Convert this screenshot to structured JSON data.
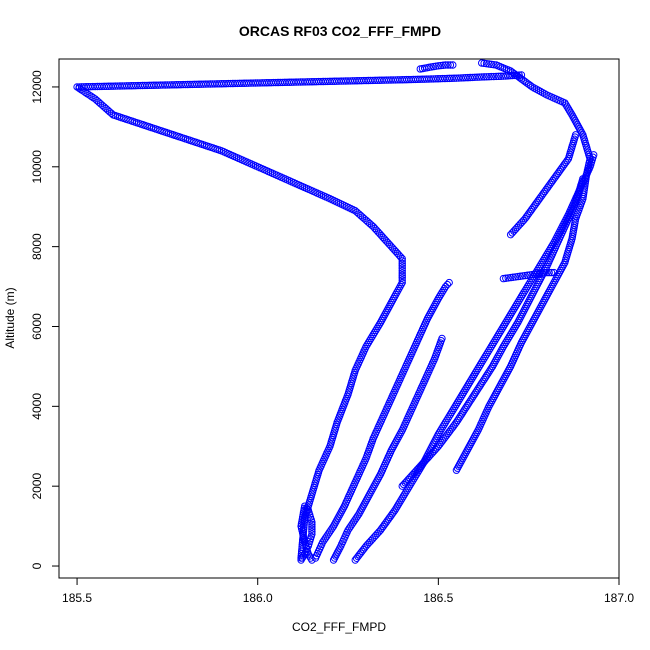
{
  "chart_data": {
    "type": "scatter",
    "title": "ORCAS RF03 CO2_FFF_FMPD",
    "xlabel": "CO2_FFF_FMPD",
    "ylabel": "Altitude (m)",
    "xlim": [
      185.45,
      187.0
    ],
    "ylim": [
      -300,
      12700
    ],
    "x_ticks": [
      185.5,
      186.0,
      186.5,
      187.0
    ],
    "x_tick_labels": [
      "185.5",
      "186.0",
      "186.5",
      "187.0"
    ],
    "y_ticks": [
      0,
      2000,
      4000,
      6000,
      8000,
      10000,
      12000
    ],
    "y_tick_labels": [
      "0",
      "2000",
      "4000",
      "6000",
      "8000",
      "10000",
      "12000"
    ],
    "grid": false,
    "marker": "open-circle",
    "series_color": "#0000ff",
    "series": [
      {
        "x": [
          186.62,
          186.66,
          186.7,
          186.73,
          186.76,
          186.8,
          186.85,
          186.87,
          186.9,
          186.92,
          186.91,
          186.9,
          186.88,
          186.87,
          186.85,
          186.82,
          186.79,
          186.76,
          186.73,
          186.7,
          186.67,
          186.64,
          186.61,
          186.58,
          186.55
        ],
        "y": [
          12600,
          12550,
          12400,
          12200,
          12000,
          11800,
          11600,
          11300,
          10800,
          10200,
          9800,
          9200,
          8700,
          8200,
          7600,
          7100,
          6600,
          6100,
          5600,
          5000,
          4500,
          4000,
          3400,
          2900,
          2400
        ]
      },
      {
        "x": [
          186.73,
          186.68,
          186.62,
          186.55,
          186.48,
          186.4,
          186.3,
          186.2,
          186.1,
          186.0,
          185.9,
          185.8,
          185.7,
          185.6,
          185.5,
          185.55,
          185.6,
          185.7,
          185.8,
          185.9,
          186.0,
          186.1,
          186.2,
          186.27,
          186.32,
          186.36,
          186.4,
          186.4,
          186.37,
          186.34,
          186.3,
          186.27,
          186.25,
          186.22,
          186.2,
          186.17,
          186.15,
          186.13,
          186.12
        ],
        "y": [
          12300,
          12270,
          12250,
          12220,
          12200,
          12180,
          12160,
          12140,
          12120,
          12100,
          12080,
          12060,
          12040,
          12020,
          12000,
          11700,
          11300,
          11000,
          10700,
          10400,
          10000,
          9600,
          9200,
          8900,
          8500,
          8100,
          7700,
          7100,
          6600,
          6100,
          5500,
          4900,
          4300,
          3600,
          3000,
          2400,
          1800,
          1200,
          200
        ]
      },
      {
        "x": [
          186.12,
          186.13,
          186.14,
          186.15,
          186.15,
          186.14,
          186.13,
          186.12,
          186.13,
          186.14,
          186.15
        ],
        "y": [
          150,
          300,
          500,
          800,
          1100,
          1400,
          1500,
          1000,
          600,
          300,
          150
        ]
      },
      {
        "x": [
          186.16,
          186.18,
          186.21,
          186.24,
          186.27,
          186.3,
          186.32,
          186.35,
          186.38,
          186.41,
          186.44,
          186.47,
          186.5,
          186.52,
          186.53
        ],
        "y": [
          200,
          600,
          1000,
          1500,
          2100,
          2700,
          3200,
          3800,
          4400,
          5000,
          5600,
          6200,
          6700,
          7000,
          7100
        ]
      },
      {
        "x": [
          186.21,
          186.23,
          186.25,
          186.28,
          186.31,
          186.34,
          186.37,
          186.4,
          186.43,
          186.46,
          186.49,
          186.51
        ],
        "y": [
          150,
          500,
          900,
          1300,
          1800,
          2300,
          2900,
          3400,
          4000,
          4600,
          5200,
          5700
        ]
      },
      {
        "x": [
          186.27,
          186.3,
          186.34,
          186.38,
          186.42,
          186.46,
          186.5,
          186.54,
          186.58,
          186.62,
          186.66,
          186.7,
          186.74,
          186.78,
          186.82,
          186.86,
          186.89,
          186.92,
          186.93
        ],
        "y": [
          150,
          500,
          900,
          1400,
          2000,
          2600,
          3300,
          3900,
          4500,
          5100,
          5700,
          6300,
          6900,
          7500,
          8100,
          8800,
          9400,
          10000,
          10300
        ]
      },
      {
        "x": [
          186.4,
          186.45,
          186.5,
          186.55,
          186.6,
          186.65,
          186.68,
          186.72,
          186.76,
          186.8,
          186.84,
          186.88,
          186.9
        ],
        "y": [
          2000,
          2500,
          3000,
          3600,
          4300,
          5000,
          5500,
          6100,
          6800,
          7500,
          8300,
          9100,
          9700
        ]
      },
      {
        "x": [
          186.68,
          186.72,
          186.76,
          186.8,
          186.82
        ],
        "y": [
          7200,
          7250,
          7300,
          7350,
          7350
        ]
      },
      {
        "x": [
          186.45,
          186.48,
          186.5,
          186.52,
          186.54
        ],
        "y": [
          12450,
          12500,
          12530,
          12550,
          12550
        ]
      },
      {
        "x": [
          186.7,
          186.74,
          186.78,
          186.82,
          186.86,
          186.88
        ],
        "y": [
          8300,
          8700,
          9200,
          9700,
          10200,
          10800
        ]
      }
    ]
  }
}
